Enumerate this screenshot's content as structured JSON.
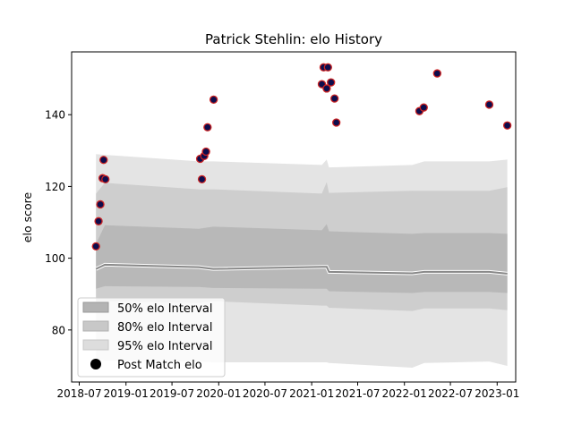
{
  "chart_data": {
    "type": "scatter",
    "title": "Patrick Stehlin: elo History",
    "xlabel": "",
    "ylabel": "elo score",
    "xlim": [
      "2018-06-01",
      "2023-03-15"
    ],
    "ylim": [
      65.5,
      157.5
    ],
    "x_ticks": [
      "2018-07",
      "2019-01",
      "2019-07",
      "2020-01",
      "2020-07",
      "2021-01",
      "2021-07",
      "2022-01",
      "2022-07",
      "2023-01"
    ],
    "y_ticks": [
      80,
      100,
      120,
      140
    ],
    "grid": false,
    "legend": {
      "placement": "lower-left",
      "entries": [
        "50% elo Interval",
        "80% elo Interval",
        "95% elo Interval",
        "Post Match elo"
      ]
    },
    "colors": {
      "band50": "#b3b3b3",
      "band80": "#c8c8c8",
      "band95": "#dddddd",
      "median_line": "#888888",
      "points_fill": "#0d0d4d",
      "points_edge": "#cc2222"
    },
    "bands": {
      "dates": [
        "2018-09-05",
        "2018-10-10",
        "2019-10-15",
        "2019-12-10",
        "2021-02-10",
        "2021-03-01",
        "2021-03-10",
        "2022-02-01",
        "2022-03-20",
        "2022-12-01",
        "2023-02-10"
      ],
      "median": [
        97.0,
        98.2,
        97.5,
        97.0,
        97.6,
        97.6,
        96.2,
        95.8,
        96.2,
        96.2,
        95.7
      ],
      "p50_lo": [
        91.5,
        92.2,
        92.0,
        91.7,
        91.5,
        91.5,
        90.8,
        90.3,
        90.6,
        90.6,
        90.3
      ],
      "p50_hi": [
        104.0,
        109.2,
        108.2,
        108.8,
        107.8,
        109.5,
        107.5,
        106.8,
        107.0,
        107.0,
        106.8
      ],
      "p80_lo": [
        88.0,
        88.0,
        87.5,
        88.0,
        86.8,
        86.8,
        86.2,
        85.3,
        86.0,
        86.0,
        85.5
      ],
      "p80_hi": [
        118.0,
        121.0,
        119.2,
        119.2,
        118.0,
        121.2,
        118.2,
        118.8,
        118.8,
        118.8,
        119.8
      ],
      "p95_lo": [
        72.0,
        71.5,
        71.2,
        71.0,
        71.0,
        71.0,
        70.8,
        69.5,
        70.8,
        71.2,
        70.0
      ],
      "p95_hi": [
        129.0,
        128.8,
        127.0,
        127.0,
        126.0,
        127.5,
        125.3,
        126.0,
        127.0,
        127.0,
        127.5
      ]
    },
    "series": [
      {
        "name": "Post Match elo",
        "points": [
          {
            "x": "2018-09-05",
            "y": 103.3
          },
          {
            "x": "2018-09-15",
            "y": 110.3
          },
          {
            "x": "2018-09-22",
            "y": 115.0
          },
          {
            "x": "2018-10-01",
            "y": 122.3
          },
          {
            "x": "2018-10-05",
            "y": 127.4
          },
          {
            "x": "2018-10-12",
            "y": 122.0
          },
          {
            "x": "2019-10-20",
            "y": 127.7
          },
          {
            "x": "2019-10-27",
            "y": 122.0
          },
          {
            "x": "2019-11-05",
            "y": 128.5
          },
          {
            "x": "2019-11-12",
            "y": 129.7
          },
          {
            "x": "2019-11-18",
            "y": 136.5
          },
          {
            "x": "2019-12-12",
            "y": 144.2
          },
          {
            "x": "2021-02-10",
            "y": 148.5
          },
          {
            "x": "2021-02-17",
            "y": 153.2
          },
          {
            "x": "2021-03-01",
            "y": 147.3
          },
          {
            "x": "2021-03-06",
            "y": 153.2
          },
          {
            "x": "2021-03-18",
            "y": 149.0
          },
          {
            "x": "2021-04-01",
            "y": 144.5
          },
          {
            "x": "2021-04-08",
            "y": 137.8
          },
          {
            "x": "2022-03-01",
            "y": 141.0
          },
          {
            "x": "2022-03-18",
            "y": 142.0
          },
          {
            "x": "2022-05-10",
            "y": 151.5
          },
          {
            "x": "2022-12-01",
            "y": 142.8
          },
          {
            "x": "2023-02-10",
            "y": 137.0
          }
        ]
      }
    ]
  }
}
